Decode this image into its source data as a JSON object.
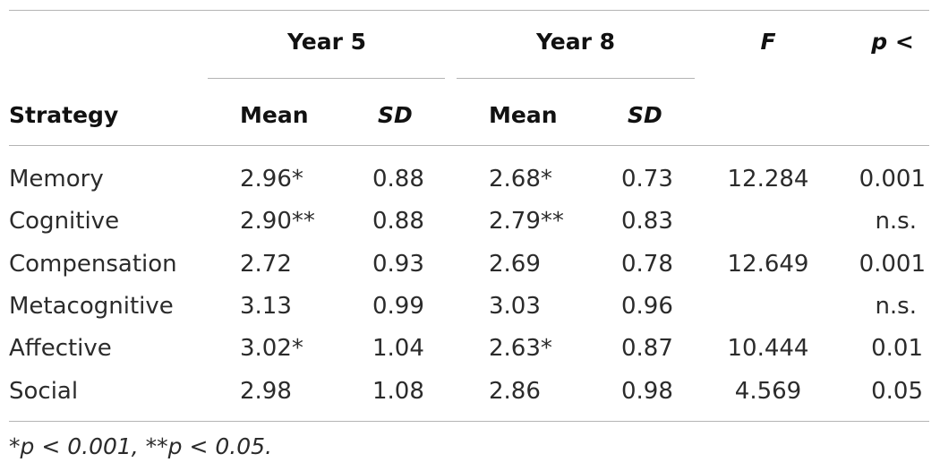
{
  "table": {
    "group_headers": {
      "year5": "Year 5",
      "year8": "Year 8",
      "f": "F",
      "p": "p <"
    },
    "sub_headers": {
      "strategy": "Strategy",
      "y5_mean": "Mean",
      "y5_sd": "SD",
      "y8_mean": "Mean",
      "y8_sd": "SD"
    },
    "rows": [
      {
        "strategy": "Memory",
        "y5_mean": "2.96*",
        "y5_sd": "0.88",
        "y8_mean": "2.68*",
        "y8_sd": "0.73",
        "f": "12.284",
        "p": "0.001"
      },
      {
        "strategy": "Cognitive",
        "y5_mean": "2.90**",
        "y5_sd": "0.88",
        "y8_mean": "2.79**",
        "y8_sd": "0.83",
        "f": "",
        "p": "n.s."
      },
      {
        "strategy": "Compensation",
        "y5_mean": "2.72",
        "y5_sd": "0.93",
        "y8_mean": "2.69",
        "y8_sd": "0.78",
        "f": "12.649",
        "p": "0.001"
      },
      {
        "strategy": "Metacognitive",
        "y5_mean": "3.13",
        "y5_sd": "0.99",
        "y8_mean": "3.03",
        "y8_sd": "0.96",
        "f": "",
        "p": "n.s."
      },
      {
        "strategy": "Affective",
        "y5_mean": "3.02*",
        "y5_sd": "1.04",
        "y8_mean": "2.63*",
        "y8_sd": "0.87",
        "f": "10.444",
        "p": "0.01"
      },
      {
        "strategy": "Social",
        "y5_mean": "2.98",
        "y5_sd": "1.08",
        "y8_mean": "2.86",
        "y8_sd": "0.98",
        "f": "4.569",
        "p": "0.05"
      }
    ],
    "footnote": "*p < 0.001, **p < 0.05."
  }
}
